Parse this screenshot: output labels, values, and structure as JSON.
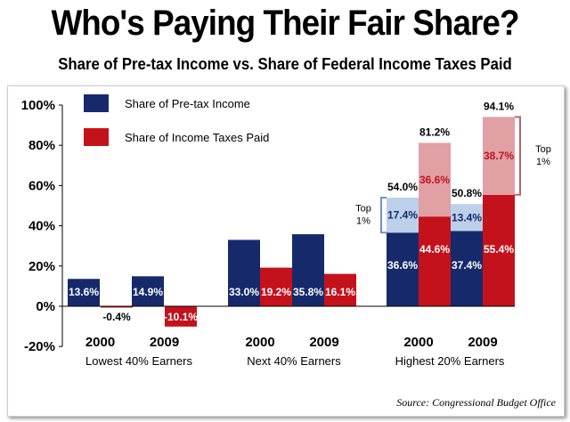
{
  "title": "Who's Paying Their Fair Share?",
  "subtitle": "Share of Pre-tax Income vs. Share of Federal Income Taxes Paid",
  "source": "Source:  Congressional Budget Office",
  "colors": {
    "income": "#162a6b",
    "taxes": "#c3121c",
    "income_light": "#bcd0ea",
    "taxes_light": "#e0a0a4",
    "brace_income": "#6f93c9",
    "brace_taxes": "#c3606a"
  },
  "chart_data": {
    "type": "bar",
    "title": "Who's Paying Their Fair Share?",
    "subtitle": "Share of Pre-tax Income vs. Share of Federal Income Taxes Paid",
    "ylim": [
      -20,
      100
    ],
    "yticks": [
      -20,
      0,
      20,
      40,
      60,
      80,
      100
    ],
    "ytick_labels": [
      "-20%",
      "0%",
      "20%",
      "40%",
      "60%",
      "80%",
      "100%"
    ],
    "legend": [
      "Share of Pre-tax Income",
      "Share of Income Taxes Paid"
    ],
    "legend_position": "top-left",
    "groups": [
      {
        "name": "Lowest 40% Earners",
        "years": [
          {
            "year": "2000",
            "income": 13.6,
            "income_label": "13.6%",
            "taxes": -0.4,
            "taxes_label": "-0.4%"
          },
          {
            "year": "2009",
            "income": 14.9,
            "income_label": "14.9%",
            "taxes": -10.1,
            "taxes_label": "-10.1%"
          }
        ]
      },
      {
        "name": "Next 40% Earners",
        "years": [
          {
            "year": "2000",
            "income": 33.0,
            "income_label": "33.0%",
            "taxes": 19.2,
            "taxes_label": "19.2%"
          },
          {
            "year": "2009",
            "income": 35.8,
            "income_label": "35.8%",
            "taxes": 16.1,
            "taxes_label": "16.1%"
          }
        ]
      },
      {
        "name": "Highest 20% Earners",
        "years": [
          {
            "year": "2000",
            "income": 54.0,
            "income_label": "54.0%",
            "income_top1": 17.4,
            "income_top1_label": "17.4%",
            "income_rest_label": "36.6%",
            "taxes": 81.2,
            "taxes_label": "81.2%",
            "taxes_top1": 36.6,
            "taxes_top1_label": "36.6%",
            "taxes_rest_label": "44.6%"
          },
          {
            "year": "2009",
            "income": 50.8,
            "income_label": "50.8%",
            "income_top1": 13.4,
            "income_top1_label": "13.4%",
            "income_rest_label": "37.4%",
            "taxes": 94.1,
            "taxes_label": "94.1%",
            "taxes_top1": 38.7,
            "taxes_top1_label": "38.7%",
            "taxes_rest_label": "55.4%"
          }
        ]
      }
    ],
    "annotations": {
      "top1_income_label": [
        "Top",
        "1%"
      ],
      "top1_taxes_label": [
        "Top",
        "1%"
      ]
    }
  }
}
